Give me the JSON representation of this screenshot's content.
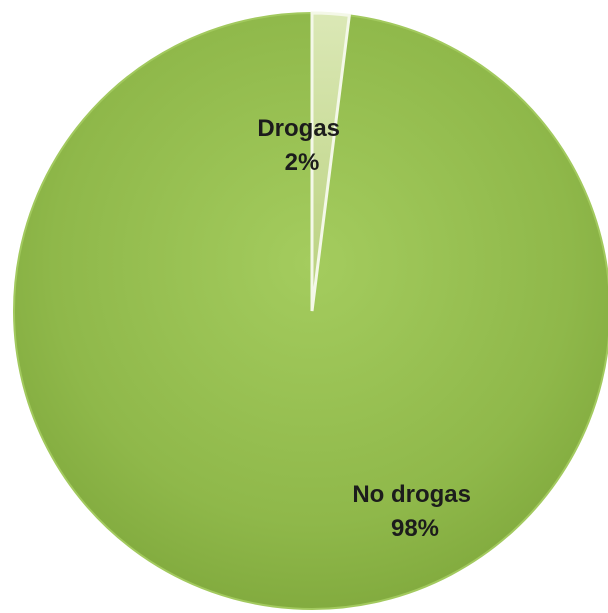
{
  "chart_data": {
    "type": "pie",
    "title": "",
    "start_angle_deg": 0,
    "direction": "counterclockwise",
    "slices": [
      {
        "category": "No drogas",
        "value": 98,
        "percent_label": "98%",
        "color": "#8ab446",
        "edge_color": "#9cc458"
      },
      {
        "category": "Drogas",
        "value": 2,
        "percent_label": "2%",
        "color": "#c8dc98",
        "edge_color": "#ffffff"
      }
    ],
    "legend": "none",
    "data_labels": "category and percent inside slices"
  }
}
